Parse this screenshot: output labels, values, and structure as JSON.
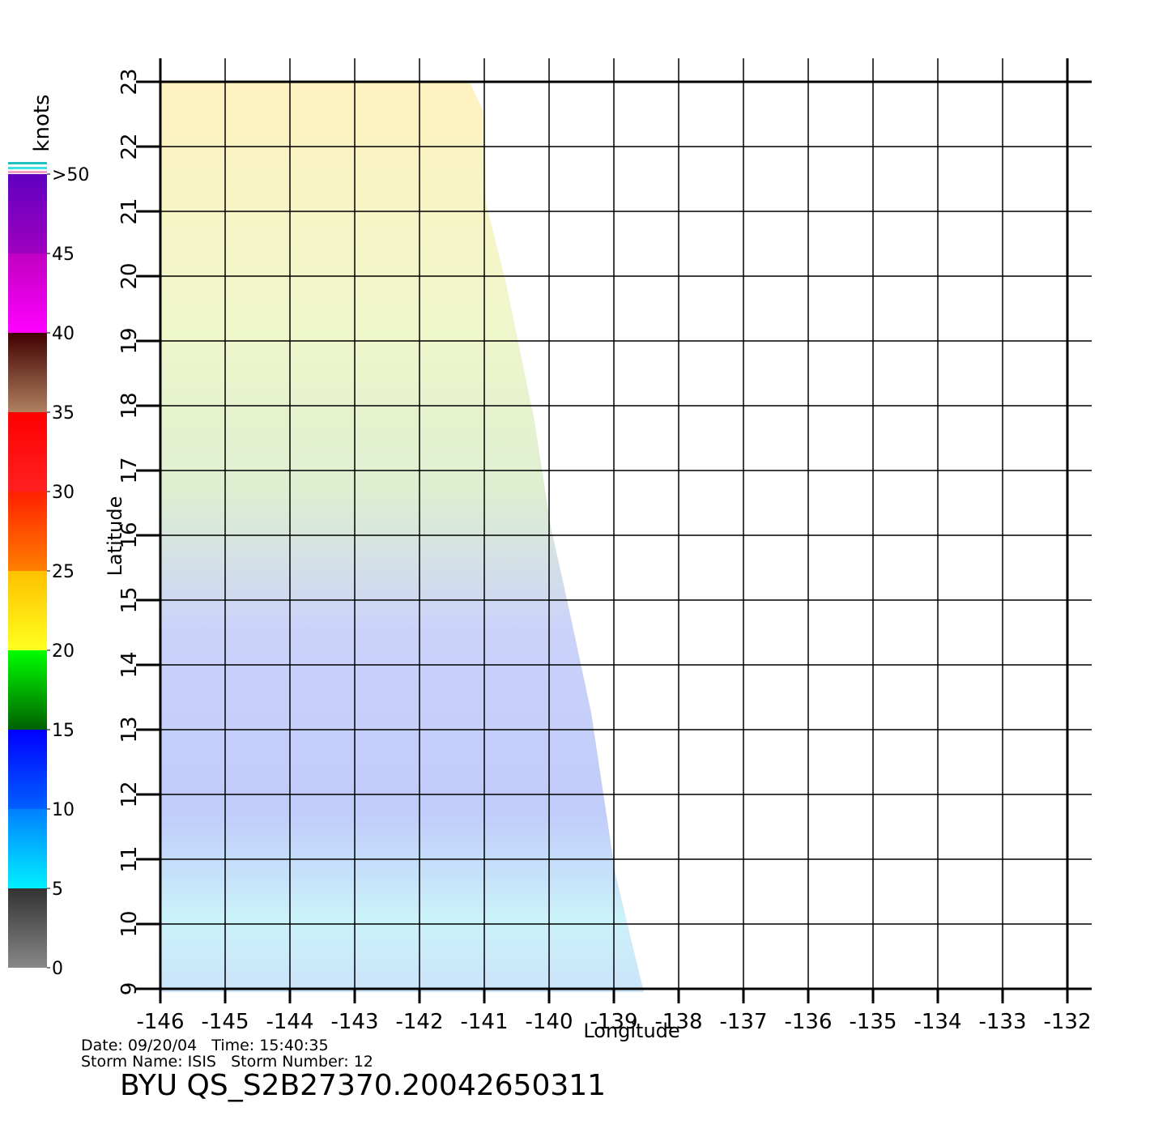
{
  "chart_data": {
    "type": "vector",
    "x_label": "Longitude",
    "y_label": "Latitude",
    "xlim": [
      -146,
      -132
    ],
    "ylim": [
      9,
      23
    ],
    "xticks": [
      -146,
      -145,
      -144,
      -143,
      -142,
      -141,
      -140,
      -139,
      -138,
      -137,
      -136,
      -135,
      -134,
      -133,
      -132
    ],
    "yticks": [
      9,
      10,
      11,
      12,
      13,
      14,
      15,
      16,
      17,
      18,
      19,
      20,
      21,
      22,
      23
    ],
    "grid": true,
    "colorbar": {
      "label": "knots",
      "lim": [
        0,
        50
      ],
      "ticks": [
        0,
        5,
        10,
        15,
        20,
        25,
        30,
        35,
        40,
        45,
        {
          "value": 50,
          "label": ">50"
        }
      ],
      "colors": [
        [
          "#888888",
          "#333333"
        ],
        [
          "#00f0ff",
          "#0080ff"
        ],
        [
          "#0060ff",
          "#0000ff"
        ],
        [
          "#006000",
          "#00ff00"
        ],
        [
          "#ffff20",
          "#ffc000"
        ],
        [
          "#ff8000",
          "#ff2000"
        ],
        [
          "#ff2020",
          "#ff0000"
        ],
        [
          "#b08060",
          "#400000"
        ],
        [
          "#ff00ff",
          "#c000c0"
        ],
        [
          "#a000c0",
          "#6000c0"
        ]
      ]
    }
  },
  "footer": {
    "date_line": "Date: 09/20/04   Time: 15:40:35",
    "storm_line": "Storm Name: ISIS   Storm Number: 12",
    "product": "BYU QS_S2B27370.20042650311"
  }
}
